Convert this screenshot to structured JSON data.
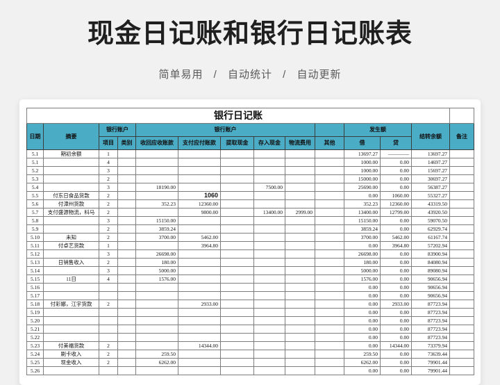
{
  "page": {
    "title": "现金日记账和银行日记账表",
    "subtitle": "简单易用 / 自动统计 / 自动更新"
  },
  "colors": {
    "header_bg": "#4bacc6",
    "page_bg": "#f1f1f2",
    "card_bg": "#ffffff"
  },
  "sheet": {
    "title": "银行日记账",
    "header": {
      "date": "日期",
      "summary": "摘要",
      "bank_account_small": "银行账户",
      "bank_account_big": "银行账户",
      "item": "项目",
      "category": "类别",
      "collect": "收回应收账款",
      "pay": "支付应付账款",
      "withdraw": "提取现金",
      "deposit": "存入现金",
      "logistics": "物流费用",
      "other": "其他",
      "occurred": "发生额",
      "debit": "借",
      "credit": "贷",
      "balance": "结转余额",
      "note": "备注"
    },
    "rows": [
      {
        "date": "5.1",
        "summary": "期初余额",
        "item": "1",
        "debit": "13697.27",
        "credit": "————",
        "balance": "13697.27"
      },
      {
        "date": "5.1",
        "item": "4",
        "debit": "1000.00",
        "credit": "0.00",
        "balance": "14697.27"
      },
      {
        "date": "5.2",
        "item": "3",
        "debit": "1000.00",
        "credit": "0.00",
        "balance": "15697.27"
      },
      {
        "date": "5.3",
        "item": "2",
        "debit": "15000.00",
        "credit": "0.00",
        "balance": "30697.27"
      },
      {
        "date": "5.4",
        "item": "3",
        "collect": "18190.00",
        "deposit": "7500.00",
        "debit": "25690.00",
        "credit": "0.00",
        "balance": "56387.27"
      },
      {
        "date": "5.5",
        "summary": "付东日食品货款",
        "item": "2",
        "pay": "1060",
        "bold": [
          "pay"
        ],
        "debit": "0.00",
        "credit": "1060.00",
        "balance": "55327.27"
      },
      {
        "date": "5.6",
        "summary": "付漳州货款",
        "item": "2",
        "collect": "352.23",
        "pay": "12360.00",
        "debit": "352.23",
        "credit": "12360.00",
        "balance": "43319.50"
      },
      {
        "date": "5.7",
        "summary": "支付盛源物流，科马",
        "item": "2",
        "pay": "9800.00",
        "deposit": "13400.00",
        "logistics": "2999.00",
        "debit": "13400.00",
        "credit": "12799.00",
        "balance": "43920.50"
      },
      {
        "date": "5.8",
        "item": "3",
        "collect": "15150.00",
        "debit": "15150.00",
        "credit": "0.00",
        "balance": "59070.50"
      },
      {
        "date": "5.9",
        "item": "2",
        "collect": "3859.24",
        "debit": "3859.24",
        "credit": "0.00",
        "balance": "62929.74"
      },
      {
        "date": "5.10",
        "summary": "未知",
        "item": "2",
        "collect": "3700.00",
        "pay": "5462.00",
        "debit": "3700.00",
        "credit": "5462.00",
        "balance": "61167.74"
      },
      {
        "date": "5.11",
        "summary": "付卓艺货款",
        "item": "1",
        "pay": "3964.80",
        "debit": "0.00",
        "credit": "3964.80",
        "balance": "57202.94"
      },
      {
        "date": "5.12",
        "item": "3",
        "collect": "26698.00",
        "debit": "26698.00",
        "credit": "0.00",
        "balance": "83900.94"
      },
      {
        "date": "5.13",
        "summary": "日销售收入",
        "item": "2",
        "collect": "180.00",
        "debit": "180.00",
        "credit": "0.00",
        "balance": "84080.94"
      },
      {
        "date": "5.14",
        "item": "3",
        "collect": "5000.00",
        "debit": "5000.00",
        "credit": "0.00",
        "balance": "89080.94"
      },
      {
        "date": "5.15",
        "summary": "11日",
        "item": "4",
        "collect": "1576.00",
        "debit": "1576.00",
        "credit": "0.00",
        "balance": "90656.94"
      },
      {
        "date": "5.16",
        "debit": "0.00",
        "credit": "0.00",
        "balance": "90656.94"
      },
      {
        "date": "5.17",
        "debit": "0.00",
        "credit": "0.00",
        "balance": "90656.94"
      },
      {
        "date": "5.18",
        "summary": "付彩娜，江宇货款",
        "item": "2",
        "pay": "2933.00",
        "debit": "0.00",
        "credit": "2933.00",
        "balance": "87723.94"
      },
      {
        "date": "5.19",
        "debit": "0.00",
        "credit": "0.00",
        "balance": "87723.94"
      },
      {
        "date": "5.20",
        "debit": "0.00",
        "credit": "0.00",
        "balance": "87723.94"
      },
      {
        "date": "5.21",
        "debit": "0.00",
        "credit": "0.00",
        "balance": "87723.94"
      },
      {
        "date": "5.22",
        "debit": "0.00",
        "credit": "0.00",
        "balance": "87723.94"
      },
      {
        "date": "5.23",
        "summary": "付美福货款",
        "item": "2",
        "pay": "14344.00",
        "debit": "0.00",
        "credit": "14344.00",
        "balance": "73379.94"
      },
      {
        "date": "5.24",
        "summary": "刷卡收入",
        "item": "2",
        "collect": "259.50",
        "debit": "259.50",
        "credit": "0.00",
        "balance": "73639.44"
      },
      {
        "date": "5.25",
        "summary": "现金收入",
        "item": "2",
        "collect": "6262.00",
        "debit": "6262.00",
        "credit": "0.00",
        "balance": "79901.44"
      },
      {
        "date": "5.26",
        "debit": "0.00",
        "credit": "0.00",
        "balance": "79901.44"
      }
    ]
  }
}
